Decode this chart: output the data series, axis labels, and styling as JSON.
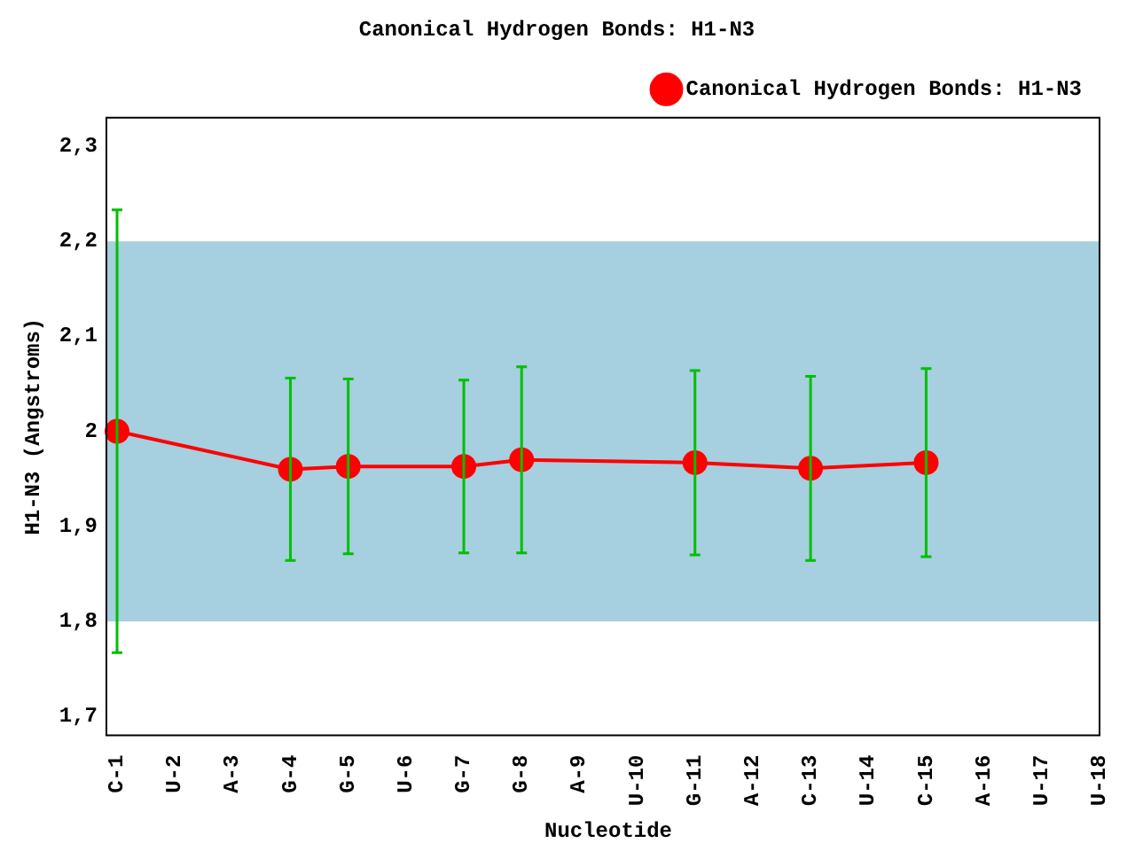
{
  "chart_data": {
    "type": "line",
    "title": "Canonical Hydrogen Bonds: H1-N3",
    "xlabel": "Nucleotide",
    "ylabel": "H1-N3 (Angstroms)",
    "categories": [
      "C-1",
      "U-2",
      "A-3",
      "G-4",
      "G-5",
      "U-6",
      "G-7",
      "G-8",
      "A-9",
      "U-10",
      "G-11",
      "A-12",
      "C-13",
      "U-14",
      "C-15",
      "A-16",
      "U-17",
      "U-18"
    ],
    "series": [
      {
        "name": "Canonical Hydrogen Bonds: H1-N3",
        "color": "#ff0000",
        "values": [
          2.0,
          null,
          null,
          1.96,
          1.963,
          null,
          1.963,
          1.97,
          null,
          null,
          1.967,
          null,
          1.961,
          null,
          1.967,
          null,
          null,
          null
        ],
        "errors": [
          0.233,
          null,
          null,
          0.096,
          0.092,
          null,
          0.091,
          0.098,
          null,
          null,
          0.097,
          null,
          0.097,
          null,
          0.099,
          null,
          null,
          null
        ]
      }
    ],
    "ylim": [
      1.68,
      2.33
    ],
    "yticks": [
      {
        "value": 1.7,
        "label": "1,7"
      },
      {
        "value": 1.8,
        "label": "1,8"
      },
      {
        "value": 1.9,
        "label": "1,9"
      },
      2,
      {
        "value": 2.1,
        "label": "2,1"
      },
      {
        "value": 2.2,
        "label": "2,2"
      },
      {
        "value": 2.3,
        "label": "2,3"
      }
    ],
    "bands": [
      {
        "axis": "y",
        "from": 1.8,
        "to": 2.2,
        "color": "#a6cfdf"
      }
    ],
    "grid": false,
    "legend": "top right",
    "marker": "circle",
    "line_style": "solid"
  }
}
